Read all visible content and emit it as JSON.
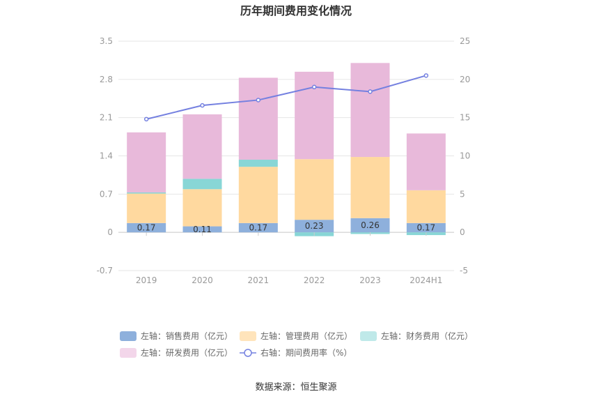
{
  "chart_data": {
    "type": "bar",
    "title": "历年期间费用变化情况",
    "categories": [
      "2019",
      "2020",
      "2021",
      "2022",
      "2023",
      "2024H1"
    ],
    "left_axis": {
      "min": -0.7,
      "max": 3.5,
      "ticks": [
        "3.5",
        "2.8",
        "2.1",
        "1.4",
        "0.7",
        "0",
        "-0.7"
      ]
    },
    "right_axis": {
      "min": -5,
      "max": 25,
      "ticks": [
        "25",
        "20",
        "15",
        "10",
        "5",
        "0",
        "-5"
      ]
    },
    "series": [
      {
        "name": "左轴：销售费用（亿元）",
        "type": "stacked-bar",
        "axis": "left",
        "color": "#8eb0dc",
        "values": [
          0.17,
          0.11,
          0.17,
          0.23,
          0.26,
          0.17
        ],
        "labels": [
          "0.17",
          "0.11",
          "0.17",
          "0.23",
          "0.26",
          "0.17"
        ]
      },
      {
        "name": "左轴：管理费用（亿元）",
        "type": "stacked-bar",
        "axis": "left",
        "color": "#ffd99f",
        "values": [
          0.54,
          0.68,
          1.03,
          1.11,
          1.12,
          0.6
        ]
      },
      {
        "name": "左轴：财务费用（亿元）",
        "type": "stacked-bar",
        "axis": "left",
        "color": "#88d6d6",
        "values": [
          0.02,
          0.19,
          0.13,
          -0.07,
          -0.03,
          -0.05
        ]
      },
      {
        "name": "左轴：研发费用（亿元）",
        "type": "stacked-bar",
        "axis": "left",
        "color": "#e8b9da",
        "values": [
          1.1,
          1.18,
          1.5,
          1.6,
          1.72,
          1.04
        ]
      },
      {
        "name": "右轴：期间费用率（%）",
        "type": "line",
        "axis": "right",
        "color": "#7480e0",
        "values": [
          14.8,
          16.6,
          17.3,
          19.0,
          18.4,
          20.5
        ]
      }
    ],
    "legend_position": "bottom",
    "grid": true
  },
  "source_text": "数据来源：恒生聚源"
}
